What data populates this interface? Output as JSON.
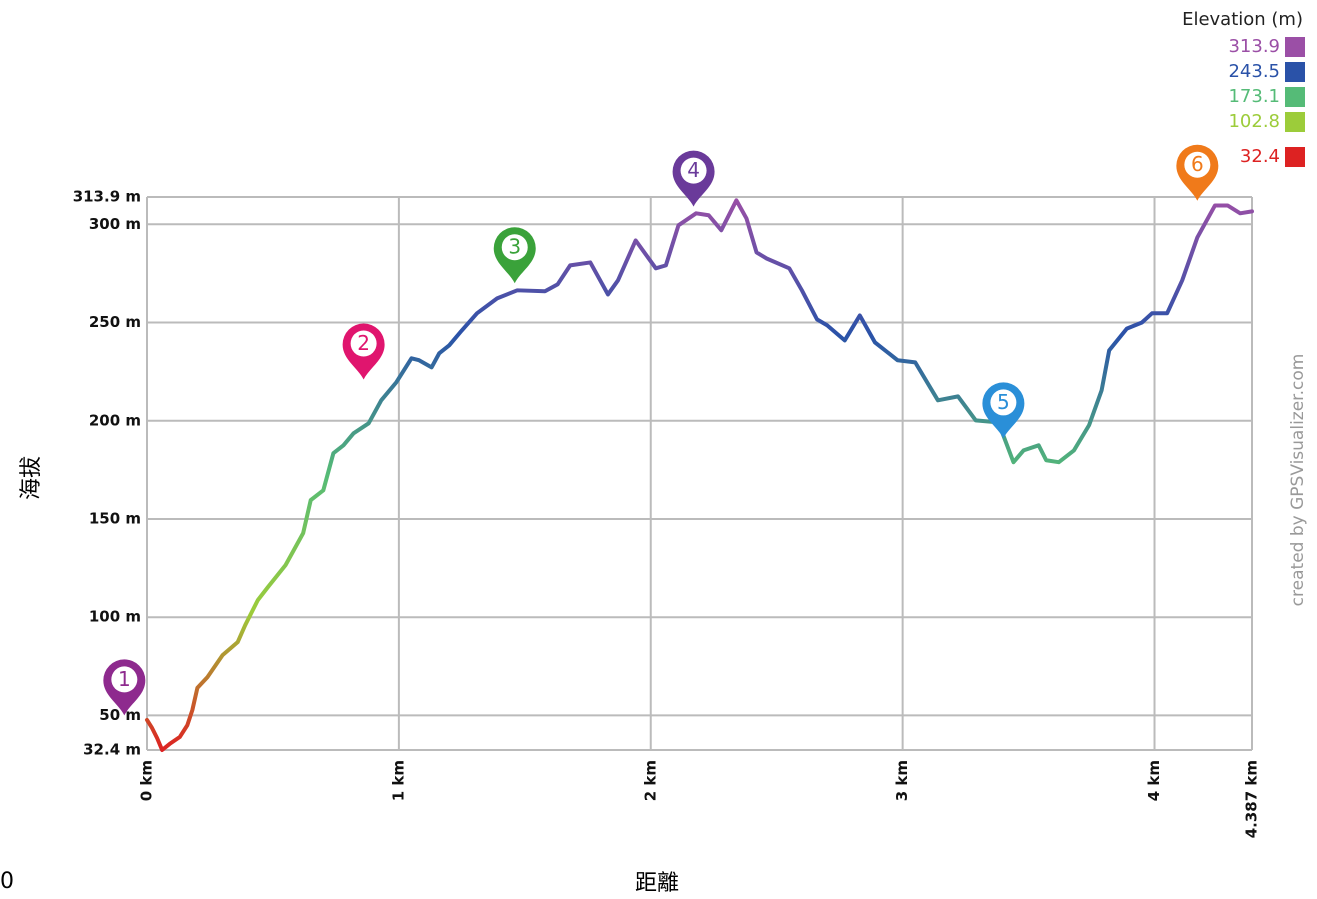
{
  "chart_data": {
    "type": "line",
    "x_label": "距離",
    "y_label": "海拔",
    "watermark": "created by GPSVisualizer.com",
    "corner_text": "0",
    "legend_title": "Elevation (m)",
    "color_scale": [
      {
        "value": 313.9,
        "color": "#9b4fa6"
      },
      {
        "value": 243.5,
        "color": "#2a52a8"
      },
      {
        "value": 173.1,
        "color": "#55bb77"
      },
      {
        "value": 102.8,
        "color": "#9ccc3a"
      },
      {
        "value": 32.4,
        "color": "#dd2222"
      }
    ],
    "xlim": [
      0,
      4.387
    ],
    "ylim": [
      32.4,
      313.9
    ],
    "xticks": [
      {
        "value": 0,
        "label": "0 km"
      },
      {
        "value": 1,
        "label": "1 km"
      },
      {
        "value": 2,
        "label": "2 km"
      },
      {
        "value": 3,
        "label": "3 km"
      },
      {
        "value": 4,
        "label": "4 km"
      },
      {
        "value": 4.387,
        "label": "4.387 km"
      }
    ],
    "yticks": [
      {
        "value": 32.4,
        "label": "32.4 m"
      },
      {
        "value": 50,
        "label": "50 m"
      },
      {
        "value": 100,
        "label": "100 m"
      },
      {
        "value": 150,
        "label": "150 m"
      },
      {
        "value": 200,
        "label": "200 m"
      },
      {
        "value": 250,
        "label": "250 m"
      },
      {
        "value": 300,
        "label": "300 m"
      },
      {
        "value": 313.9,
        "label": "313.9 m"
      }
    ],
    "grid": true,
    "series": [
      {
        "x": [
          0,
          0.02,
          0.04,
          0.06,
          0.09,
          0.13,
          0.16,
          0.18,
          0.2,
          0.24,
          0.3,
          0.36,
          0.39,
          0.44,
          0.48,
          0.55,
          0.62,
          0.65,
          0.7,
          0.74,
          0.78,
          0.82,
          0.88,
          0.93,
          0.99,
          1.05,
          1.08,
          1.13,
          1.16,
          1.2,
          1.25,
          1.31,
          1.39,
          1.47,
          1.58,
          1.63,
          1.68,
          1.76,
          1.83,
          1.87,
          1.94,
          2.02,
          2.06,
          2.11,
          2.18,
          2.23,
          2.28,
          2.34,
          2.38,
          2.42,
          2.46,
          2.55,
          2.6,
          2.66,
          2.7,
          2.77,
          2.83,
          2.89,
          2.98,
          3.05,
          3.14,
          3.22,
          3.29,
          3.38,
          3.44,
          3.48,
          3.54,
          3.57,
          3.62,
          3.68,
          3.74,
          3.79,
          3.82,
          3.89,
          3.95,
          3.99,
          4.05,
          4.11,
          4.17,
          4.24,
          4.29,
          4.34,
          4.387
        ],
        "values": [
          47.7,
          43.6,
          38.5,
          32.4,
          35.5,
          39,
          45,
          52.7,
          64,
          69.5,
          80.7,
          87.3,
          96,
          108.7,
          115.3,
          126.5,
          142.8,
          159.6,
          164.6,
          183.5,
          187.5,
          193.6,
          198.7,
          210.4,
          219.6,
          231.8,
          230.8,
          227.2,
          234.3,
          238.4,
          246,
          254.7,
          262.3,
          266.4,
          265.9,
          269.4,
          279.1,
          280.6,
          264.3,
          271.5,
          291.8,
          277.6,
          279.1,
          299.5,
          305.6,
          304.6,
          297,
          312.2,
          303,
          285.7,
          282.6,
          277.6,
          266.4,
          251.6,
          248.6,
          240.9,
          253.6,
          239.9,
          230.8,
          229.7,
          210.4,
          212.4,
          200.2,
          199.2,
          178.9,
          184.9,
          187.5,
          179.9,
          178.9,
          184.9,
          197.7,
          215.5,
          235.8,
          246.9,
          250,
          254.7,
          254.7,
          271.5,
          293.3,
          309.6,
          309.6,
          305.6,
          306.6
        ]
      }
    ],
    "waypoints": [
      {
        "label": "1",
        "x": -0.09,
        "y": 50,
        "color": "#8e2a8e"
      },
      {
        "label": "2",
        "x": 0.86,
        "y": 221,
        "color": "#e0156e"
      },
      {
        "label": "3",
        "x": 1.46,
        "y": 270,
        "color": "#3aa23a"
      },
      {
        "label": "4",
        "x": 2.17,
        "y": 309,
        "color": "#6a3a9a"
      },
      {
        "label": "5",
        "x": 3.4,
        "y": 191,
        "color": "#2a8fd8"
      },
      {
        "label": "6",
        "x": 4.17,
        "y": 312,
        "color": "#f07a1a"
      }
    ]
  }
}
